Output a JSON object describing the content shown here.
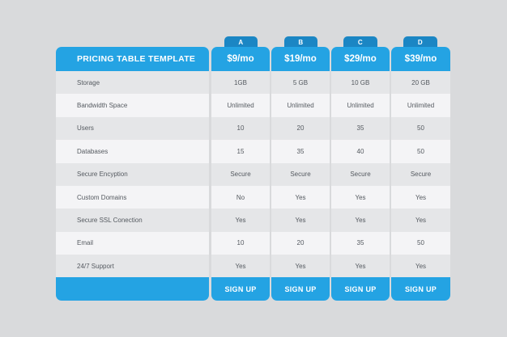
{
  "title": "PRICING TABLE TEMPLATE",
  "features": [
    "Storage",
    "Bandwidth Space",
    "Users",
    "Databases",
    "Secure Encyption",
    "Custom Domains",
    "Secure SSL Conection",
    "Email",
    "24/7 Support"
  ],
  "plans": [
    {
      "tab": "A",
      "price": "$9/mo",
      "values": [
        "1GB",
        "Unlimited",
        "10",
        "15",
        "Secure",
        "No",
        "Yes",
        "10",
        "Yes"
      ],
      "cta": "SIGN UP"
    },
    {
      "tab": "B",
      "price": "$19/mo",
      "values": [
        "5 GB",
        "Unlimited",
        "20",
        "35",
        "Secure",
        "Yes",
        "Yes",
        "20",
        "Yes"
      ],
      "cta": "SIGN UP"
    },
    {
      "tab": "C",
      "price": "$29/mo",
      "values": [
        "10 GB",
        "Unlimited",
        "35",
        "40",
        "Secure",
        "Yes",
        "Yes",
        "35",
        "Yes"
      ],
      "cta": "SIGN UP"
    },
    {
      "tab": "D",
      "price": "$39/mo",
      "values": [
        "20 GB",
        "Unlimited",
        "50",
        "50",
        "Secure",
        "Yes",
        "Yes",
        "50",
        "Yes"
      ],
      "cta": "SIGN UP"
    }
  ],
  "colors": {
    "header": "#24a3e3",
    "tab": "#1b86c4",
    "background": "#d9dadc"
  }
}
